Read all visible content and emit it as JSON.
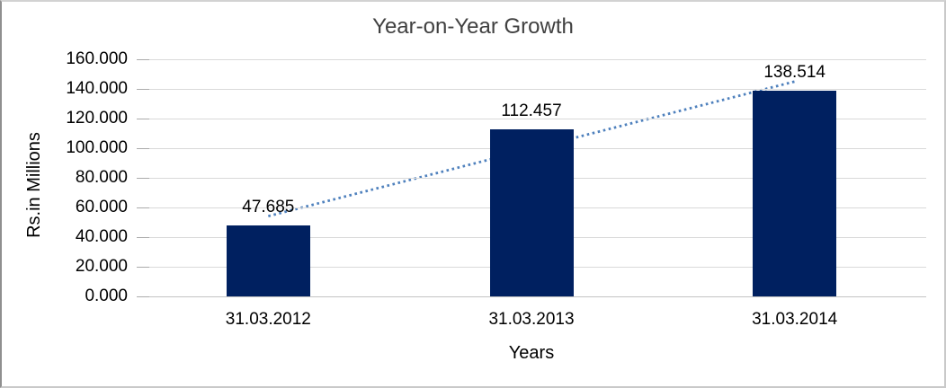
{
  "chart_data": {
    "type": "bar",
    "title": "Year-on-Year Growth",
    "xlabel": "Years",
    "ylabel": "Rs.in Millions",
    "categories": [
      "31.03.2012",
      "31.03.2013",
      "31.03.2014"
    ],
    "values": [
      47.685,
      112.457,
      138.514
    ],
    "data_labels": [
      "47.685",
      "112.457",
      "138.514"
    ],
    "ytick_labels": [
      "0.000",
      "20.000",
      "40.000",
      "60.000",
      "80.000",
      "100.000",
      "120.000",
      "140.000",
      "160.000"
    ],
    "ylim": [
      0,
      160
    ],
    "grid": true,
    "legend": "none",
    "bar_color": "#002060",
    "trendline": {
      "type": "linear",
      "style": "dotted",
      "color": "#4f81bd",
      "endpoint_fit_values": [
        54.14,
        144.97
      ]
    }
  }
}
